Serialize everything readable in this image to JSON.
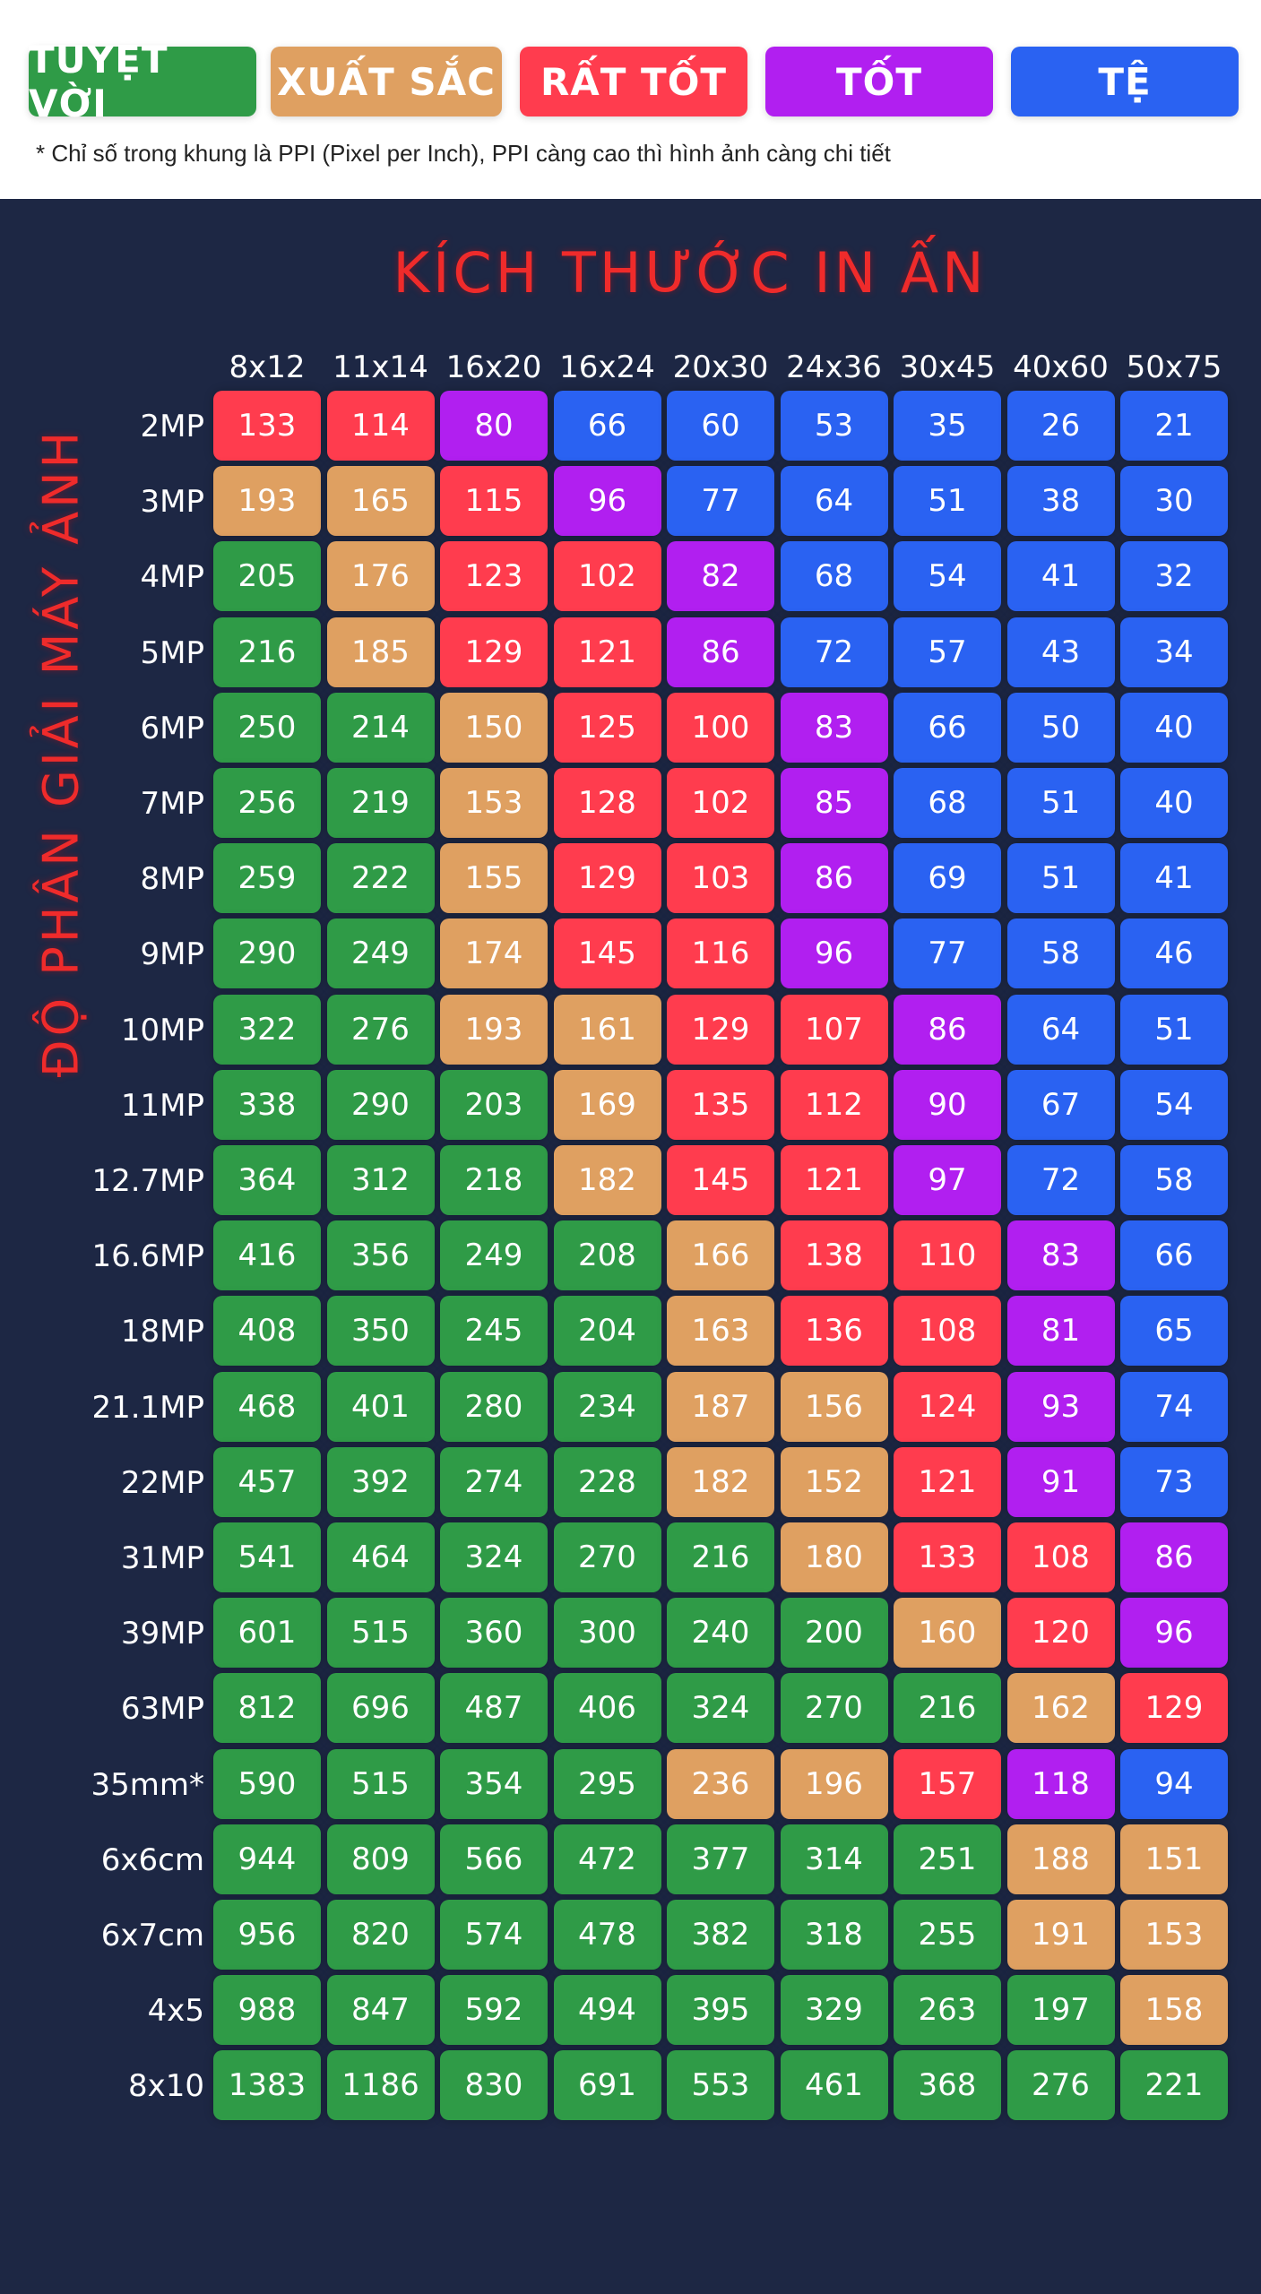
{
  "legend": [
    {
      "key": "excellent",
      "label": "TUYỆT VỜI",
      "color": "#2f9b47"
    },
    {
      "key": "great",
      "label": "XUẤT SẮC",
      "color": "#dfa061"
    },
    {
      "key": "verygood",
      "label": "RẤT TỐT",
      "color": "#ff3c4e"
    },
    {
      "key": "good",
      "label": "TỐT",
      "color": "#b11ff0"
    },
    {
      "key": "bad",
      "label": "TỆ",
      "color": "#2a62f2"
    }
  ],
  "note": "* Chỉ số trong khung là PPI (Pixel per Inch), PPI càng cao thì hình ảnh càng chi tiết",
  "chart_data": {
    "type": "heatmap",
    "title": "KÍCH THƯỚC IN ẤN",
    "xlabel": "KÍCH THƯỚC IN ẤN",
    "ylabel": "ĐỘ PHÂN GIẢI MÁY ẢNH",
    "columns": [
      "8x12",
      "11x14",
      "16x20",
      "16x24",
      "20x30",
      "24x36",
      "30x45",
      "40x60",
      "50x75"
    ],
    "rows": [
      {
        "label": "2MP",
        "values": [
          133,
          114,
          80,
          66,
          60,
          53,
          35,
          26,
          21
        ],
        "levels": [
          "verygood",
          "verygood",
          "good",
          "bad",
          "bad",
          "bad",
          "bad",
          "bad",
          "bad"
        ]
      },
      {
        "label": "3MP",
        "values": [
          193,
          165,
          115,
          96,
          77,
          64,
          51,
          38,
          30
        ],
        "levels": [
          "great",
          "great",
          "verygood",
          "good",
          "bad",
          "bad",
          "bad",
          "bad",
          "bad"
        ]
      },
      {
        "label": "4MP",
        "values": [
          205,
          176,
          123,
          102,
          82,
          68,
          54,
          41,
          32
        ],
        "levels": [
          "excellent",
          "great",
          "verygood",
          "verygood",
          "good",
          "bad",
          "bad",
          "bad",
          "bad"
        ]
      },
      {
        "label": "5MP",
        "values": [
          216,
          185,
          129,
          121,
          86,
          72,
          57,
          43,
          34
        ],
        "levels": [
          "excellent",
          "great",
          "verygood",
          "verygood",
          "good",
          "bad",
          "bad",
          "bad",
          "bad"
        ]
      },
      {
        "label": "6MP",
        "values": [
          250,
          214,
          150,
          125,
          100,
          83,
          66,
          50,
          40
        ],
        "levels": [
          "excellent",
          "excellent",
          "great",
          "verygood",
          "verygood",
          "good",
          "bad",
          "bad",
          "bad"
        ]
      },
      {
        "label": "7MP",
        "values": [
          256,
          219,
          153,
          128,
          102,
          85,
          68,
          51,
          40
        ],
        "levels": [
          "excellent",
          "excellent",
          "great",
          "verygood",
          "verygood",
          "good",
          "bad",
          "bad",
          "bad"
        ]
      },
      {
        "label": "8MP",
        "values": [
          259,
          222,
          155,
          129,
          103,
          86,
          69,
          51,
          41
        ],
        "levels": [
          "excellent",
          "excellent",
          "great",
          "verygood",
          "verygood",
          "good",
          "bad",
          "bad",
          "bad"
        ]
      },
      {
        "label": "9MP",
        "values": [
          290,
          249,
          174,
          145,
          116,
          96,
          77,
          58,
          46
        ],
        "levels": [
          "excellent",
          "excellent",
          "great",
          "verygood",
          "verygood",
          "good",
          "bad",
          "bad",
          "bad"
        ]
      },
      {
        "label": "10MP",
        "values": [
          322,
          276,
          193,
          161,
          129,
          107,
          86,
          64,
          51
        ],
        "levels": [
          "excellent",
          "excellent",
          "great",
          "great",
          "verygood",
          "verygood",
          "good",
          "bad",
          "bad"
        ]
      },
      {
        "label": "11MP",
        "values": [
          338,
          290,
          203,
          169,
          135,
          112,
          90,
          67,
          54
        ],
        "levels": [
          "excellent",
          "excellent",
          "excellent",
          "great",
          "verygood",
          "verygood",
          "good",
          "bad",
          "bad"
        ]
      },
      {
        "label": "12.7MP",
        "values": [
          364,
          312,
          218,
          182,
          145,
          121,
          97,
          72,
          58
        ],
        "levels": [
          "excellent",
          "excellent",
          "excellent",
          "great",
          "verygood",
          "verygood",
          "good",
          "bad",
          "bad"
        ]
      },
      {
        "label": "16.6MP",
        "values": [
          416,
          356,
          249,
          208,
          166,
          138,
          110,
          83,
          66
        ],
        "levels": [
          "excellent",
          "excellent",
          "excellent",
          "excellent",
          "great",
          "verygood",
          "verygood",
          "good",
          "bad"
        ]
      },
      {
        "label": "18MP",
        "values": [
          408,
          350,
          245,
          204,
          163,
          136,
          108,
          81,
          65
        ],
        "levels": [
          "excellent",
          "excellent",
          "excellent",
          "excellent",
          "great",
          "verygood",
          "verygood",
          "good",
          "bad"
        ]
      },
      {
        "label": "21.1MP",
        "values": [
          468,
          401,
          280,
          234,
          187,
          156,
          124,
          93,
          74
        ],
        "levels": [
          "excellent",
          "excellent",
          "excellent",
          "excellent",
          "great",
          "great",
          "verygood",
          "good",
          "bad"
        ]
      },
      {
        "label": "22MP",
        "values": [
          457,
          392,
          274,
          228,
          182,
          152,
          121,
          91,
          73
        ],
        "levels": [
          "excellent",
          "excellent",
          "excellent",
          "excellent",
          "great",
          "great",
          "verygood",
          "good",
          "bad"
        ]
      },
      {
        "label": "31MP",
        "values": [
          541,
          464,
          324,
          270,
          216,
          180,
          133,
          108,
          86
        ],
        "levels": [
          "excellent",
          "excellent",
          "excellent",
          "excellent",
          "excellent",
          "great",
          "verygood",
          "verygood",
          "good"
        ]
      },
      {
        "label": "39MP",
        "values": [
          601,
          515,
          360,
          300,
          240,
          200,
          160,
          120,
          96
        ],
        "levels": [
          "excellent",
          "excellent",
          "excellent",
          "excellent",
          "excellent",
          "excellent",
          "great",
          "verygood",
          "good"
        ]
      },
      {
        "label": "63MP",
        "values": [
          812,
          696,
          487,
          406,
          324,
          270,
          216,
          162,
          129
        ],
        "levels": [
          "excellent",
          "excellent",
          "excellent",
          "excellent",
          "excellent",
          "excellent",
          "excellent",
          "great",
          "verygood"
        ]
      },
      {
        "label": "35mm*",
        "values": [
          590,
          515,
          354,
          295,
          236,
          196,
          157,
          118,
          94
        ],
        "levels": [
          "excellent",
          "excellent",
          "excellent",
          "excellent",
          "great",
          "great",
          "verygood",
          "good",
          "bad"
        ]
      },
      {
        "label": "6x6cm",
        "values": [
          944,
          809,
          566,
          472,
          377,
          314,
          251,
          188,
          151
        ],
        "levels": [
          "excellent",
          "excellent",
          "excellent",
          "excellent",
          "excellent",
          "excellent",
          "excellent",
          "great",
          "great"
        ]
      },
      {
        "label": "6x7cm",
        "values": [
          956,
          820,
          574,
          478,
          382,
          318,
          255,
          191,
          153
        ],
        "levels": [
          "excellent",
          "excellent",
          "excellent",
          "excellent",
          "excellent",
          "excellent",
          "excellent",
          "great",
          "great"
        ]
      },
      {
        "label": "4x5",
        "values": [
          988,
          847,
          592,
          494,
          395,
          329,
          263,
          197,
          158
        ],
        "levels": [
          "excellent",
          "excellent",
          "excellent",
          "excellent",
          "excellent",
          "excellent",
          "excellent",
          "excellent",
          "great"
        ]
      },
      {
        "label": "8x10",
        "values": [
          1383,
          1186,
          830,
          691,
          553,
          461,
          368,
          276,
          221
        ],
        "levels": [
          "excellent",
          "excellent",
          "excellent",
          "excellent",
          "excellent",
          "excellent",
          "excellent",
          "excellent",
          "excellent"
        ]
      }
    ]
  }
}
